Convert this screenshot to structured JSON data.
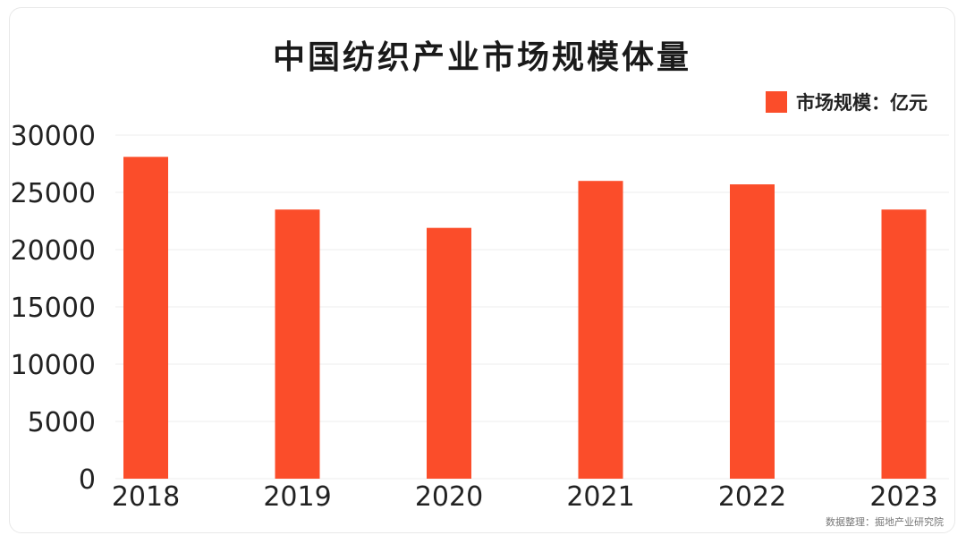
{
  "chart_data": {
    "type": "bar",
    "title": "中国纺织产业市场规模体量",
    "categories": [
      "2018",
      "2019",
      "2020",
      "2021",
      "2022",
      "2023"
    ],
    "series": [
      {
        "name": "市场规模：亿元",
        "values": [
          28100,
          23500,
          21900,
          26000,
          25700,
          23500
        ]
      }
    ],
    "yticks": [
      "0",
      "5000",
      "10000",
      "15000",
      "20000",
      "25000",
      "30000"
    ],
    "ylim": [
      0,
      30000
    ],
    "grid": true,
    "legend": "top-right",
    "xlabel": "",
    "ylabel": ""
  },
  "colors": {
    "bar": "#fb4d2a",
    "grid": "#eeeeee",
    "text": "#222222"
  },
  "source": "数据整理：掘地产业研究院"
}
